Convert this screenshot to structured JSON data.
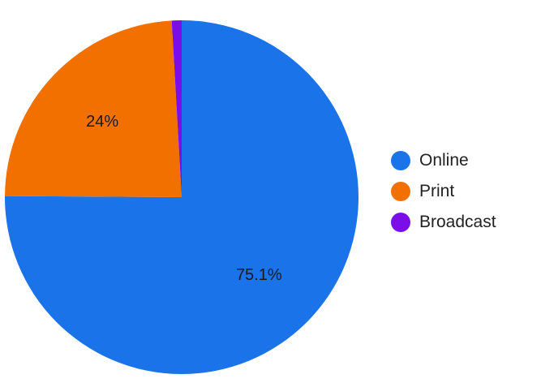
{
  "chart_data": {
    "type": "pie",
    "title": "",
    "slices": [
      {
        "label": "Online",
        "value": 75.1,
        "value_label": "75.1%",
        "color": "#1a73e8"
      },
      {
        "label": "Print",
        "value": 24,
        "value_label": "24%",
        "color": "#f27000"
      },
      {
        "label": "Broadcast",
        "value": 0.9,
        "value_label": "",
        "color": "#7b0ee8"
      }
    ],
    "legend": {
      "position": "right"
    }
  }
}
